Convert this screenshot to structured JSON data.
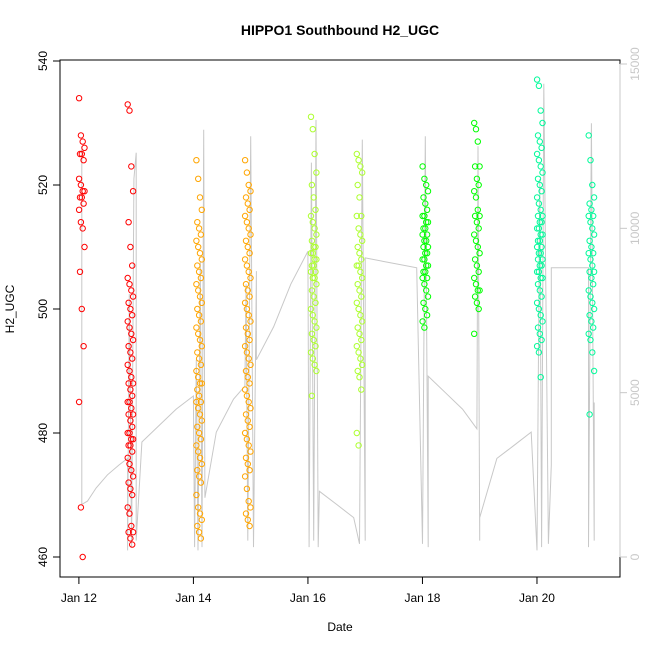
{
  "chart_data": {
    "type": "scatter",
    "title": "HIPPO1 Southbound H2_UGC",
    "xlabel": "Date",
    "ylabel": "H2_UGC",
    "x_tick_labels": [
      "Jan 12",
      "Jan 14",
      "Jan 16",
      "Jan 18",
      "Jan 20"
    ],
    "x_tick_days": [
      12,
      14,
      16,
      18,
      20
    ],
    "xlim_days": [
      11.67,
      21.45
    ],
    "y_left_ticks": [
      460,
      480,
      500,
      520,
      540
    ],
    "ylim_left": [
      460,
      540
    ],
    "y_right_ticks": [
      0,
      5000,
      10000,
      15000
    ],
    "y_right_tick_labels": [
      "0",
      "5000",
      "10000",
      "15000"
    ],
    "ylim_right": [
      -200,
      15000
    ],
    "grid": false,
    "legend": "none",
    "colors": {
      "altitude": "#c8c8c8",
      "flights": [
        "#ff0000",
        "#ff0000",
        "#ffa500",
        "#ffa500",
        "#adff2f",
        "#adff2f",
        "#00ff00",
        "#00ff00",
        "#00fa9a",
        "#00fa9a"
      ]
    },
    "series": [
      {
        "day": 12.05,
        "values": [
          534,
          528,
          527,
          526,
          525,
          525,
          524,
          521,
          520,
          519,
          519,
          518,
          518,
          517,
          516,
          514,
          513,
          510,
          506,
          500,
          494,
          485,
          468,
          460
        ]
      },
      {
        "day": 12.9,
        "values": [
          533,
          532,
          523,
          519,
          514,
          510,
          507,
          505,
          504,
          503,
          502,
          501,
          500,
          499,
          498,
          497,
          496,
          495,
          494,
          493,
          492,
          491,
          490,
          489,
          488,
          488,
          487,
          486,
          485,
          485,
          484,
          483,
          483,
          482,
          481,
          480,
          480,
          479,
          479,
          478,
          478,
          477,
          476,
          475,
          474,
          473,
          472,
          471,
          470,
          468,
          467,
          465,
          464,
          464,
          463,
          462
        ]
      },
      {
        "day": 14.1,
        "values": [
          524,
          521,
          518,
          516,
          514,
          513,
          512,
          511,
          510,
          509,
          508,
          507,
          506,
          505,
          504,
          503,
          502,
          501,
          500,
          499,
          498,
          497,
          496,
          495,
          494,
          493,
          492,
          491,
          490,
          489,
          488,
          488,
          487,
          486,
          485,
          485,
          484,
          483,
          482,
          481,
          480,
          479,
          478,
          477,
          476,
          475,
          474,
          473,
          472,
          470,
          468,
          467,
          466,
          465,
          464,
          463
        ]
      },
      {
        "day": 14.95,
        "values": [
          524,
          522,
          520,
          519,
          518,
          517,
          516,
          515,
          514,
          513,
          512,
          511,
          510,
          509,
          508,
          507,
          506,
          505,
          504,
          503,
          502,
          501,
          500,
          499,
          498,
          497,
          496,
          495,
          494,
          493,
          492,
          491,
          490,
          489,
          488,
          487,
          486,
          485,
          484,
          483,
          482,
          481,
          480,
          479,
          478,
          477,
          476,
          475,
          474,
          473,
          471,
          469,
          468,
          467,
          466,
          465
        ]
      },
      {
        "day": 16.1,
        "values": [
          531,
          529,
          525,
          522,
          520,
          518,
          516,
          515,
          514,
          513,
          512,
          511,
          510,
          510,
          509,
          509,
          508,
          508,
          507,
          507,
          506,
          506,
          505,
          505,
          504,
          503,
          502,
          501,
          500,
          499,
          498,
          497,
          496,
          495,
          494,
          493,
          492,
          491,
          490,
          486
        ]
      },
      {
        "day": 16.9,
        "values": [
          525,
          524,
          523,
          522,
          520,
          518,
          515,
          515,
          513,
          512,
          511,
          510,
          509,
          508,
          507,
          507,
          506,
          505,
          504,
          503,
          502,
          501,
          500,
          499,
          498,
          497,
          496,
          495,
          494,
          493,
          492,
          491,
          490,
          489,
          487,
          480,
          478
        ]
      },
      {
        "day": 18.05,
        "values": [
          523,
          521,
          520,
          519,
          518,
          517,
          516,
          515,
          515,
          514,
          514,
          513,
          513,
          512,
          512,
          511,
          511,
          510,
          510,
          509,
          509,
          508,
          508,
          507,
          507,
          506,
          506,
          505,
          505,
          504,
          503,
          502,
          501,
          500,
          499,
          498,
          497
        ]
      },
      {
        "day": 18.95,
        "values": [
          530,
          529,
          527,
          523,
          523,
          521,
          520,
          519,
          518,
          516,
          515,
          515,
          514,
          513,
          512,
          511,
          510,
          509,
          508,
          507,
          506,
          505,
          504,
          503,
          503,
          502,
          501,
          500,
          496
        ]
      },
      {
        "day": 20.05,
        "values": [
          537,
          536,
          532,
          530,
          528,
          527,
          526,
          525,
          524,
          523,
          522,
          521,
          520,
          519,
          518,
          517,
          516,
          515,
          515,
          514,
          514,
          513,
          513,
          512,
          512,
          511,
          511,
          510,
          510,
          509,
          509,
          508,
          508,
          507,
          507,
          506,
          506,
          505,
          505,
          504,
          503,
          502,
          501,
          500,
          499,
          498,
          497,
          496,
          495,
          494,
          493,
          489
        ]
      },
      {
        "day": 20.95,
        "values": [
          528,
          524,
          520,
          518,
          517,
          516,
          515,
          515,
          514,
          513,
          512,
          511,
          510,
          509,
          509,
          508,
          507,
          506,
          506,
          505,
          504,
          503,
          502,
          501,
          500,
          499,
          498,
          497,
          496,
          495,
          493,
          490,
          483
        ]
      }
    ],
    "altitude_series": {
      "points": [
        [
          12.05,
          12500
        ],
        [
          12.05,
          1600
        ],
        [
          12.15,
          1700
        ],
        [
          12.3,
          2100
        ],
        [
          12.5,
          2500
        ],
        [
          12.7,
          2800
        ],
        [
          12.85,
          3000
        ],
        [
          12.85,
          200
        ],
        [
          12.88,
          8000
        ],
        [
          12.92,
          300
        ],
        [
          12.96,
          11500
        ],
        [
          13.0,
          12300
        ],
        [
          13.0,
          500
        ],
        [
          13.1,
          3500
        ],
        [
          13.4,
          4000
        ],
        [
          13.7,
          4500
        ],
        [
          14.0,
          4900
        ],
        [
          14.02,
          300
        ],
        [
          14.05,
          6000
        ],
        [
          14.08,
          200
        ],
        [
          14.12,
          9000
        ],
        [
          14.15,
          300
        ],
        [
          14.18,
          13000
        ],
        [
          14.2,
          1800
        ],
        [
          14.4,
          3800
        ],
        [
          14.7,
          4800
        ],
        [
          14.9,
          5200
        ],
        [
          14.92,
          8300
        ],
        [
          14.95,
          500
        ],
        [
          15.0,
          12800
        ],
        [
          15.05,
          300
        ],
        [
          15.1,
          8700
        ],
        [
          15.1,
          6000
        ],
        [
          15.4,
          7000
        ],
        [
          15.7,
          8300
        ],
        [
          16.0,
          9300
        ],
        [
          16.02,
          300
        ],
        [
          16.06,
          12000
        ],
        [
          16.1,
          500
        ],
        [
          16.14,
          13300
        ],
        [
          16.18,
          300
        ],
        [
          16.2,
          2000
        ],
        [
          16.5,
          1600
        ],
        [
          16.8,
          1200
        ],
        [
          16.9,
          400
        ],
        [
          16.95,
          12700
        ],
        [
          17.0,
          500
        ],
        [
          17.0,
          9100
        ],
        [
          17.3,
          9000
        ],
        [
          17.6,
          8900
        ],
        [
          17.9,
          8800
        ],
        [
          18.0,
          400
        ],
        [
          18.05,
          12800
        ],
        [
          18.1,
          300
        ],
        [
          18.1,
          5500
        ],
        [
          18.4,
          5000
        ],
        [
          18.7,
          4500
        ],
        [
          18.95,
          3900
        ],
        [
          18.97,
          12500
        ],
        [
          19.0,
          500
        ],
        [
          19.0,
          1200
        ],
        [
          19.3,
          3000
        ],
        [
          19.6,
          3400
        ],
        [
          19.9,
          3800
        ],
        [
          20.0,
          200
        ],
        [
          20.05,
          11500
        ],
        [
          20.08,
          300
        ],
        [
          20.12,
          14400
        ],
        [
          20.2,
          400
        ],
        [
          20.25,
          2800
        ],
        [
          20.25,
          8800
        ],
        [
          20.6,
          8800
        ],
        [
          20.9,
          8800
        ],
        [
          20.9,
          300
        ],
        [
          20.95,
          13200
        ],
        [
          21.0,
          500
        ],
        [
          21.0,
          4700
        ]
      ]
    }
  }
}
